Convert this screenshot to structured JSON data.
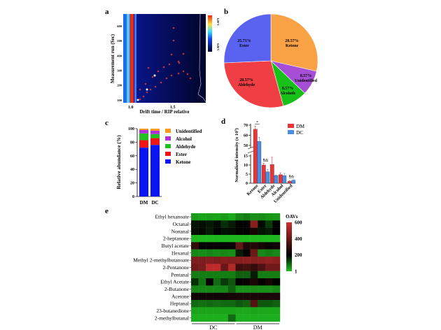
{
  "chart_data": [
    {
      "panel": "a",
      "type": "heatmap",
      "title": "",
      "xlabel": "Drift time / RIP relative",
      "ylabel": "Measurement run (Sec)",
      "xticks": [
        "1.0",
        "1.5"
      ],
      "yticks": [
        100,
        200,
        300,
        400,
        500,
        600
      ],
      "ylim": [
        80,
        680
      ],
      "colorbar_labels": [
        "6.00 V",
        "0.00 V"
      ]
    },
    {
      "panel": "b",
      "type": "pie",
      "labels": [
        "Ketone",
        "Unidentified",
        "Alcohols",
        "Aldehyde",
        "Ester"
      ],
      "values": [
        28.57,
        8.57,
        8.57,
        28.57,
        25.71
      ],
      "value_labels": [
        "28.57%",
        "8.57%",
        "8.57%",
        "28.57%",
        "25.71%"
      ],
      "colors": [
        "#f9a245",
        "#a64fd6",
        "#17c11a",
        "#ef3e44",
        "#5a62f0"
      ]
    },
    {
      "panel": "c",
      "type": "bar",
      "stacked": true,
      "categories": [
        "DM",
        "DC"
      ],
      "series": [
        {
          "name": "Ketone",
          "values": [
            72,
            76
          ],
          "color": "#0a14f0"
        },
        {
          "name": "Ester",
          "values": [
            11,
            10
          ],
          "color": "#f01414"
        },
        {
          "name": "Aldehyde",
          "values": [
            10,
            6
          ],
          "color": "#20c020"
        },
        {
          "name": "Alcohol",
          "values": [
            5,
            5
          ],
          "color": "#b030d8"
        },
        {
          "name": "Unidentified",
          "values": [
            2,
            3
          ],
          "color": "#f8961e"
        }
      ],
      "legend_order": [
        "Unidentified",
        "Alcohol",
        "Aldehyde",
        "Ester",
        "Ketone"
      ],
      "xlabel": "",
      "ylabel": "Relative abundance (%)",
      "yticks": [
        0,
        20,
        40,
        60,
        80,
        100
      ],
      "ylim": [
        0,
        100
      ]
    },
    {
      "panel": "d",
      "type": "bar",
      "categories": [
        "Ketone",
        "Ester",
        "Aldehyde",
        "Alcohol",
        "Unidentified"
      ],
      "series": [
        {
          "name": "DM",
          "values": [
            66,
            10,
            10.3,
            4.7,
            1.0
          ],
          "errors": [
            3,
            1,
            4,
            1,
            0.3
          ],
          "color": "#e8353b"
        },
        {
          "name": "DC",
          "values": [
            54,
            6.3,
            4.2,
            4.2,
            1.6
          ],
          "errors": [
            4,
            1.2,
            0.3,
            1.2,
            0.3
          ],
          "color": "#4a8fe0"
        }
      ],
      "significance": [
        "*",
        "n.s.",
        "",
        "",
        "n.s."
      ],
      "ylabel": "Normalized intensity (x 10",
      "ylabel_exp": "5",
      "ylabel_end": ")",
      "yticks_lower": [
        0,
        5,
        10,
        15
      ],
      "yticks_upper": [
        50,
        60,
        70
      ],
      "axis_break": [
        15,
        50
      ],
      "legend_placement": "top-right"
    },
    {
      "panel": "e",
      "type": "heatmap",
      "rows": [
        "Ethyl hexanoate",
        "Octanal",
        "Nonanal",
        "2-heptanone",
        "Butyl acetate",
        "Hexanal",
        "Methyl 2-methylbutanoate",
        "2-Pentanone",
        "Pentanal",
        "Ethyl Acetate",
        "2-Butanone",
        "Acetone",
        "Heptanal",
        "23-butanedione",
        "2-methylbutanal"
      ],
      "column_groups": [
        {
          "name": "DC",
          "count": 6
        },
        {
          "name": "DM",
          "count": 6
        }
      ],
      "values": [
        [
          40,
          30,
          35,
          30,
          40,
          25,
          60,
          70,
          50,
          55,
          45,
          40
        ],
        [
          180,
          185,
          175,
          190,
          150,
          170,
          210,
          205,
          460,
          190,
          140,
          200
        ],
        [
          185,
          190,
          170,
          195,
          180,
          185,
          210,
          205,
          240,
          180,
          170,
          200
        ],
        [
          10,
          10,
          10,
          10,
          10,
          10,
          10,
          10,
          10,
          10,
          10,
          10
        ],
        [
          300,
          200,
          210,
          220,
          200,
          215,
          390,
          260,
          270,
          240,
          220,
          230
        ],
        [
          60,
          55,
          60,
          55,
          60,
          55,
          170,
          200,
          410,
          60,
          70,
          60
        ],
        [
          440,
          440,
          450,
          440,
          460,
          450,
          460,
          470,
          460,
          470,
          480,
          470
        ],
        [
          420,
          430,
          560,
          570,
          400,
          540,
          320,
          330,
          300,
          350,
          420,
          420
        ],
        [
          70,
          70,
          70,
          70,
          70,
          70,
          100,
          100,
          170,
          70,
          70,
          70
        ],
        [
          150,
          80,
          220,
          90,
          140,
          110,
          210,
          220,
          250,
          210,
          240,
          200
        ],
        [
          60,
          60,
          60,
          60,
          60,
          100,
          50,
          50,
          55,
          50,
          50,
          60
        ],
        [
          230,
          230,
          230,
          230,
          230,
          240,
          250,
          250,
          250,
          250,
          250,
          250
        ],
        [
          90,
          85,
          90,
          85,
          90,
          90,
          110,
          100,
          360,
          110,
          110,
          100
        ],
        [
          30,
          30,
          30,
          30,
          30,
          30,
          25,
          25,
          30,
          25,
          25,
          25
        ],
        [
          20,
          20,
          20,
          20,
          20,
          90,
          20,
          20,
          20,
          20,
          20,
          20
        ]
      ],
      "colorbar_title": "OAVs",
      "colorbar_ticks": [
        600,
        400,
        200,
        1
      ],
      "color_scale": [
        "#1fc01f",
        "#000000",
        "#d03030"
      ],
      "range": [
        1,
        600
      ]
    }
  ],
  "panels": {
    "a": "a",
    "b": "b",
    "c": "c",
    "d": "d",
    "e": "e"
  }
}
